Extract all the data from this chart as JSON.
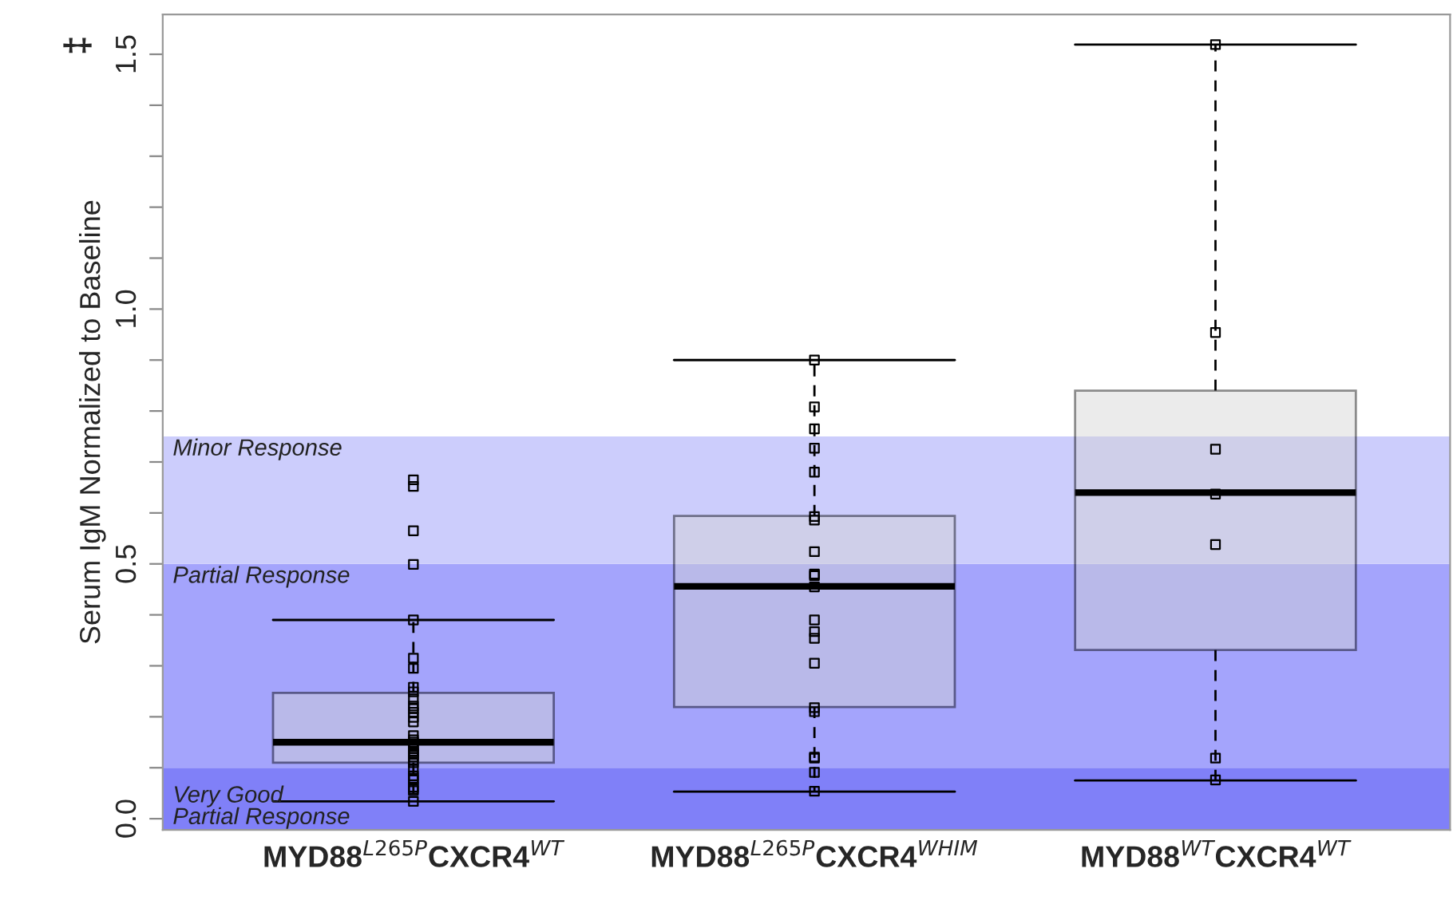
{
  "chart_data": {
    "type": "box",
    "ylabel": "Serum IgM Normalized to Baseline",
    "categories": [
      "MYD88$^{L265P}$CXCR4$^{WT}$",
      "MYD88$^{L265P}$CXCR4$^{WHIM}$",
      "MYD88$^{WT}$CXCR4$^{WT}$"
    ],
    "color": "#d3d3d3",
    "boxes": [
      {
        "low": 0.034,
        "q1": 0.11,
        "median": 0.15,
        "q3": 0.247,
        "high": 0.39
      },
      {
        "low": 0.053,
        "q1": 0.219,
        "median": 0.456,
        "q3": 0.594,
        "high": 0.9
      },
      {
        "low": 0.075,
        "q1": 0.331,
        "median": 0.64,
        "q3": 0.84,
        "high": 1.519
      }
    ],
    "series": [
      {
        "type": "scatter",
        "color": "#000000",
        "marker": "square",
        "x": [
          "MYD88$^{L265P}$CXCR4$^{WT}$",
          "MYD88$^{L265P}$CXCR4$^{WT}$",
          "MYD88$^{L265P}$CXCR4$^{WT}$",
          "MYD88$^{L265P}$CXCR4$^{WT}$",
          "MYD88$^{L265P}$CXCR4$^{WT}$",
          "MYD88$^{L265P}$CXCR4$^{WT}$",
          "MYD88$^{L265P}$CXCR4$^{WT}$",
          "MYD88$^{L265P}$CXCR4$^{WT}$",
          "MYD88$^{L265P}$CXCR4$^{WT}$",
          "MYD88$^{L265P}$CXCR4$^{WT}$",
          "MYD88$^{L265P}$CXCR4$^{WT}$",
          "MYD88$^{L265P}$CXCR4$^{WT}$",
          "MYD88$^{L265P}$CXCR4$^{WT}$",
          "MYD88$^{L265P}$CXCR4$^{WT}$",
          "MYD88$^{L265P}$CXCR4$^{WT}$",
          "MYD88$^{L265P}$CXCR4$^{WT}$",
          "MYD88$^{L265P}$CXCR4$^{WT}$",
          "MYD88$^{L265P}$CXCR4$^{WT}$",
          "MYD88$^{L265P}$CXCR4$^{WT}$",
          "MYD88$^{L265P}$CXCR4$^{WT}$",
          "MYD88$^{L265P}$CXCR4$^{WT}$",
          "MYD88$^{L265P}$CXCR4$^{WT}$",
          "MYD88$^{L265P}$CXCR4$^{WT}$",
          "MYD88$^{L265P}$CXCR4$^{WT}$",
          "MYD88$^{L265P}$CXCR4$^{WT}$",
          "MYD88$^{L265P}$CXCR4$^{WT}$",
          "MYD88$^{L265P}$CXCR4$^{WT}$",
          "MYD88$^{L265P}$CXCR4$^{WT}$",
          "MYD88$^{L265P}$CXCR4$^{WT}$",
          "MYD88$^{L265P}$CXCR4$^{WT}$",
          "MYD88$^{L265P}$CXCR4$^{WT}$",
          "MYD88$^{L265P}$CXCR4$^{WT}$",
          "MYD88$^{L265P}$CXCR4$^{WT}$",
          "MYD88$^{L265P}$CXCR4$^{WT}$",
          "MYD88$^{L265P}$CXCR4$^{WHIM}$",
          "MYD88$^{L265P}$CXCR4$^{WHIM}$",
          "MYD88$^{L265P}$CXCR4$^{WHIM}$",
          "MYD88$^{L265P}$CXCR4$^{WHIM}$",
          "MYD88$^{L265P}$CXCR4$^{WHIM}$",
          "MYD88$^{L265P}$CXCR4$^{WHIM}$",
          "MYD88$^{L265P}$CXCR4$^{WHIM}$",
          "MYD88$^{L265P}$CXCR4$^{WHIM}$",
          "MYD88$^{L265P}$CXCR4$^{WHIM}$",
          "MYD88$^{L265P}$CXCR4$^{WHIM}$",
          "MYD88$^{L265P}$CXCR4$^{WHIM}$",
          "MYD88$^{L265P}$CXCR4$^{WHIM}$",
          "MYD88$^{L265P}$CXCR4$^{WHIM}$",
          "MYD88$^{L265P}$CXCR4$^{WHIM}$",
          "MYD88$^{L265P}$CXCR4$^{WHIM}$",
          "MYD88$^{L265P}$CXCR4$^{WHIM}$",
          "MYD88$^{L265P}$CXCR4$^{WHIM}$",
          "MYD88$^{L265P}$CXCR4$^{WHIM}$",
          "MYD88$^{L265P}$CXCR4$^{WHIM}$",
          "MYD88$^{L265P}$CXCR4$^{WHIM}$",
          "MYD88$^{L265P}$CXCR4$^{WHIM}$",
          "MYD88$^{WT}$CXCR4$^{WT}$",
          "MYD88$^{WT}$CXCR4$^{WT}$",
          "MYD88$^{WT}$CXCR4$^{WT}$",
          "MYD88$^{WT}$CXCR4$^{WT}$",
          "MYD88$^{WT}$CXCR4$^{WT}$",
          "MYD88$^{WT}$CXCR4$^{WT}$",
          "MYD88$^{WT}$CXCR4$^{WT}$"
        ],
        "values": [
          0.652,
          0.665,
          0.565,
          0.499,
          0.39,
          0.315,
          0.295,
          0.258,
          0.249,
          0.235,
          0.221,
          0.216,
          0.209,
          0.199,
          0.19,
          0.163,
          0.155,
          0.15,
          0.142,
          0.137,
          0.132,
          0.121,
          0.126,
          0.129,
          0.115,
          0.11,
          0.097,
          0.084,
          0.079,
          0.076,
          0.062,
          0.058,
          0.055,
          0.034,
          0.9,
          0.808,
          0.765,
          0.727,
          0.68,
          0.593,
          0.586,
          0.524,
          0.48,
          0.477,
          0.455,
          0.39,
          0.367,
          0.354,
          0.305,
          0.21,
          0.218,
          0.121,
          0.119,
          0.091,
          0.054,
          1.519,
          0.954,
          0.725,
          0.637,
          0.538,
          0.119,
          0.076
        ]
      }
    ],
    "bands": [
      {
        "axis": "y",
        "from": -0.022,
        "to": 0.1,
        "label": "Very Good\nPartial Response",
        "color": "#8080f8"
      },
      {
        "axis": "y",
        "from": 0.1,
        "to": 0.5,
        "label": "Partial Response",
        "color": "#a4a4fc"
      },
      {
        "axis": "y",
        "from": 0.5,
        "to": 0.75,
        "label": "Minor Response",
        "color": "#cccdfc"
      }
    ],
    "ylim": [
      -0.022,
      1.578
    ],
    "yticks": [
      {
        "value": 0,
        "label": "0.0"
      },
      {
        "value": 0.1,
        "label": null
      },
      {
        "value": 0.2,
        "label": null
      },
      {
        "value": 0.3,
        "label": null
      },
      {
        "value": 0.4,
        "label": null
      },
      {
        "value": 0.5,
        "label": "0.5"
      },
      {
        "value": 0.6,
        "label": null
      },
      {
        "value": 0.7,
        "label": null
      },
      {
        "value": 0.8,
        "label": null
      },
      {
        "value": 0.9,
        "label": null
      },
      {
        "value": 1.0,
        "label": "1.0"
      },
      {
        "value": 1.1,
        "label": null
      },
      {
        "value": 1.2,
        "label": null
      },
      {
        "value": 1.3,
        "label": null
      },
      {
        "value": 1.4,
        "label": null
      },
      {
        "value": 1.5,
        "label": "1.5"
      }
    ],
    "annotations": [
      "‡"
    ],
    "grid": false,
    "legend": false
  }
}
